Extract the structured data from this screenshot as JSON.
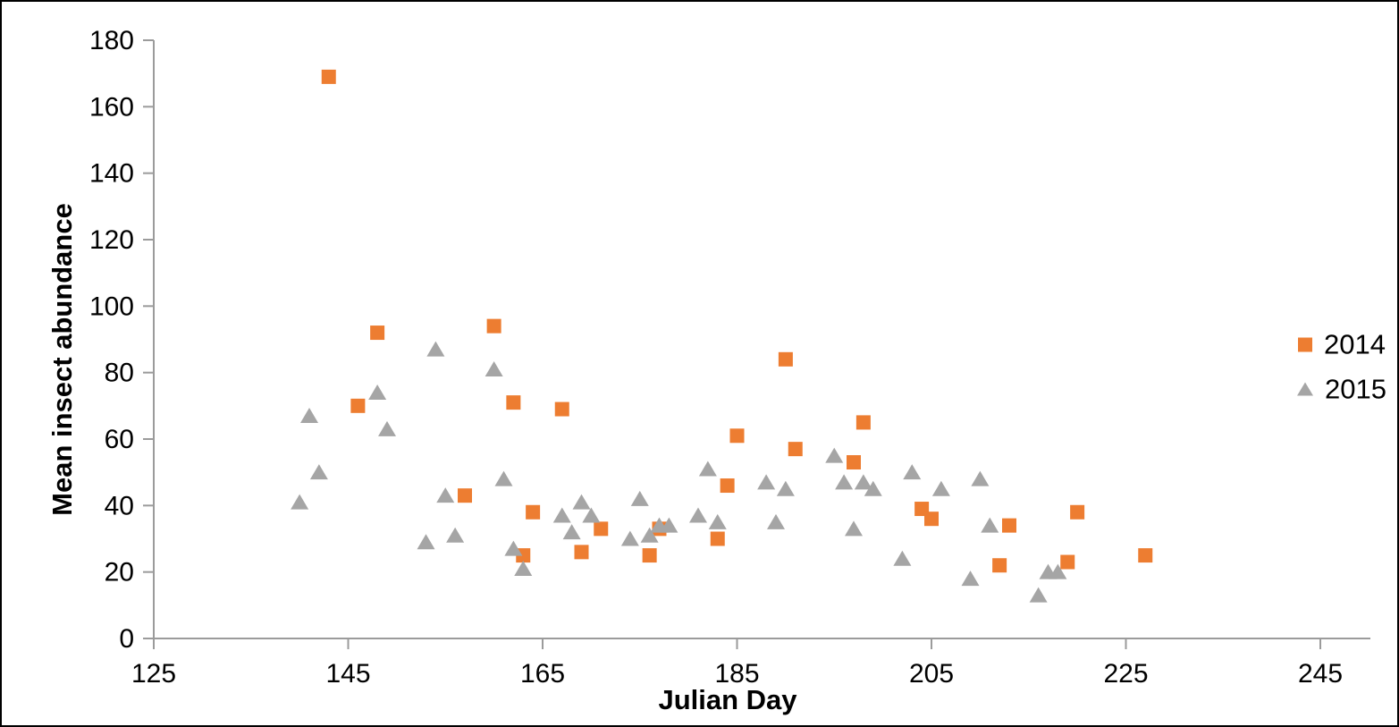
{
  "chart_data": {
    "type": "scatter",
    "title": "",
    "xlabel": "Julian Day",
    "ylabel": "Mean insect abundance",
    "xlim": [
      125,
      245
    ],
    "ylim": [
      0,
      180
    ],
    "x_ticks": [
      125,
      145,
      165,
      185,
      205,
      225,
      245
    ],
    "y_ticks": [
      0,
      20,
      40,
      60,
      80,
      100,
      120,
      140,
      160,
      180
    ],
    "grid": false,
    "legend_position": "right",
    "axis_color": "#9B9B9B",
    "text_color": "#000000",
    "series": [
      {
        "name": "2014",
        "marker": "square",
        "color": "#ED7D31",
        "points": [
          [
            143,
            169
          ],
          [
            146,
            70
          ],
          [
            148,
            92
          ],
          [
            157,
            43
          ],
          [
            160,
            94
          ],
          [
            162,
            71
          ],
          [
            163,
            25
          ],
          [
            164,
            38
          ],
          [
            167,
            69
          ],
          [
            169,
            26
          ],
          [
            171,
            33
          ],
          [
            176,
            25
          ],
          [
            177,
            33
          ],
          [
            183,
            30
          ],
          [
            184,
            46
          ],
          [
            185,
            61
          ],
          [
            190,
            84
          ],
          [
            191,
            57
          ],
          [
            197,
            53
          ],
          [
            198,
            65
          ],
          [
            204,
            39
          ],
          [
            205,
            36
          ],
          [
            212,
            22
          ],
          [
            213,
            34
          ],
          [
            219,
            23
          ],
          [
            220,
            38
          ],
          [
            227,
            25
          ]
        ]
      },
      {
        "name": "2015",
        "marker": "triangle",
        "color": "#A5A5A5",
        "points": [
          [
            140,
            41
          ],
          [
            141,
            67
          ],
          [
            142,
            50
          ],
          [
            148,
            74
          ],
          [
            149,
            63
          ],
          [
            153,
            29
          ],
          [
            154,
            87
          ],
          [
            155,
            43
          ],
          [
            156,
            31
          ],
          [
            160,
            81
          ],
          [
            161,
            48
          ],
          [
            162,
            27
          ],
          [
            163,
            21
          ],
          [
            167,
            37
          ],
          [
            168,
            32
          ],
          [
            169,
            41
          ],
          [
            170,
            37
          ],
          [
            174,
            30
          ],
          [
            175,
            42
          ],
          [
            176,
            31
          ],
          [
            177,
            34
          ],
          [
            178,
            34
          ],
          [
            181,
            37
          ],
          [
            182,
            51
          ],
          [
            183,
            35
          ],
          [
            188,
            47
          ],
          [
            189,
            35
          ],
          [
            190,
            45
          ],
          [
            195,
            55
          ],
          [
            196,
            47
          ],
          [
            197,
            33
          ],
          [
            198,
            47
          ],
          [
            199,
            45
          ],
          [
            202,
            24
          ],
          [
            203,
            50
          ],
          [
            206,
            45
          ],
          [
            209,
            18
          ],
          [
            210,
            48
          ],
          [
            211,
            34
          ],
          [
            216,
            13
          ],
          [
            217,
            20
          ],
          [
            218,
            20
          ]
        ]
      }
    ]
  }
}
